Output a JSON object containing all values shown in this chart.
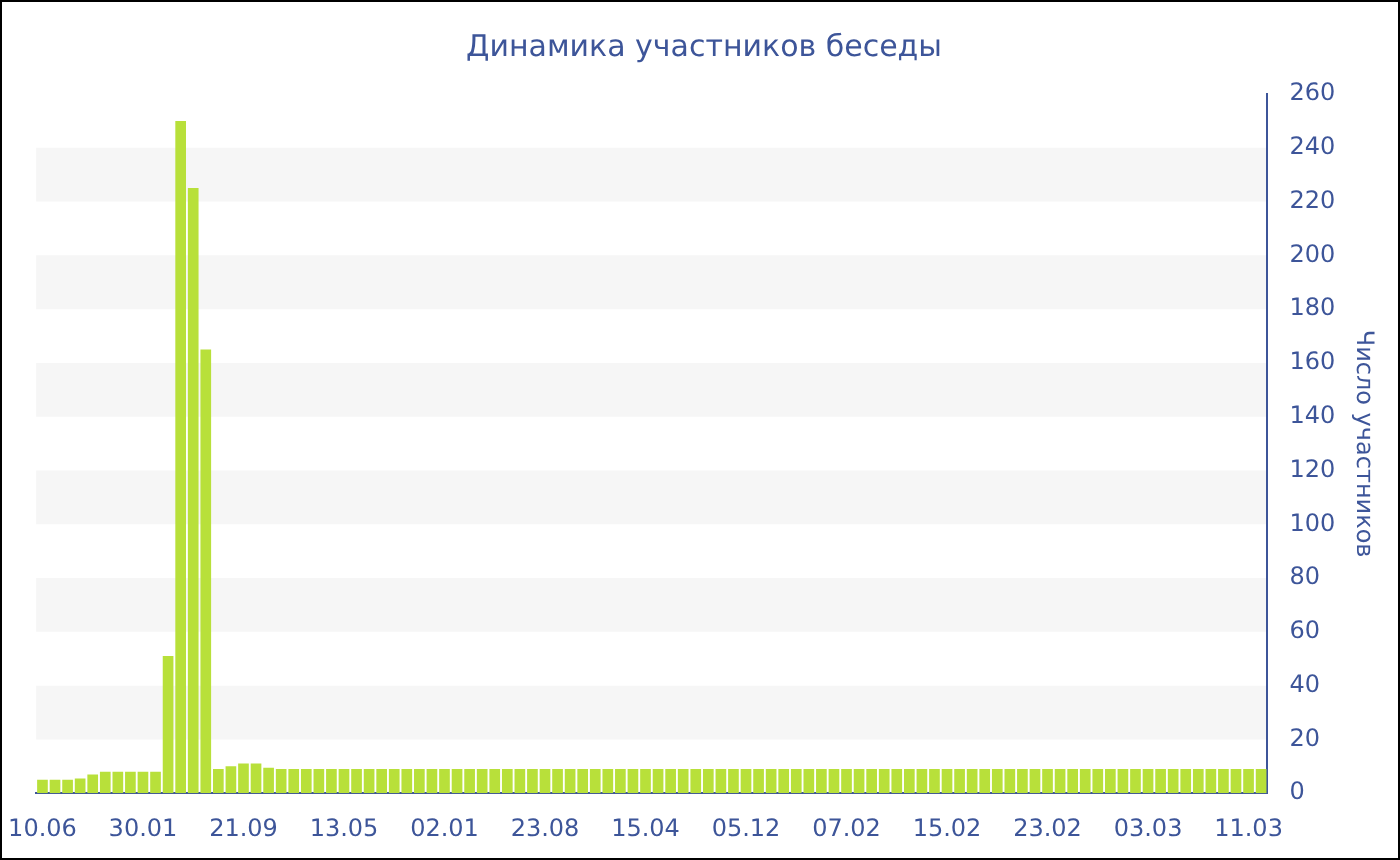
{
  "chart_data": {
    "type": "bar",
    "title": "Динамика участников беседы",
    "ylabel": "Число участников",
    "categories": [
      "10.06",
      null,
      null,
      null,
      null,
      null,
      null,
      null,
      "30.01",
      null,
      null,
      null,
      null,
      null,
      null,
      null,
      "21.09",
      null,
      null,
      null,
      null,
      null,
      null,
      null,
      "13.05",
      null,
      null,
      null,
      null,
      null,
      null,
      null,
      "02.01",
      null,
      null,
      null,
      null,
      null,
      null,
      null,
      "23.08",
      null,
      null,
      null,
      null,
      null,
      null,
      null,
      "15.04",
      null,
      null,
      null,
      null,
      null,
      null,
      null,
      "05.12",
      null,
      null,
      null,
      null,
      null,
      null,
      null,
      "07.02",
      null,
      null,
      null,
      null,
      null,
      null,
      null,
      "15.02",
      null,
      null,
      null,
      null,
      null,
      null,
      null,
      "23.02",
      null,
      null,
      null,
      null,
      null,
      null,
      null,
      "03.03",
      null,
      null,
      null,
      null,
      null,
      null,
      null,
      "11.03",
      null
    ],
    "values": [
      5,
      5,
      5,
      5.5,
      7,
      8,
      8,
      8,
      8,
      8,
      51,
      250,
      225,
      165,
      9,
      10,
      11,
      11,
      9.5,
      9,
      9,
      9,
      9,
      9,
      9,
      9,
      9,
      9,
      9,
      9,
      9,
      9,
      9,
      9,
      9,
      9,
      9,
      9,
      9,
      9,
      9,
      9,
      9,
      9,
      9,
      9,
      9,
      9,
      9,
      9,
      9,
      9,
      9,
      9,
      9,
      9,
      9,
      9,
      9,
      9,
      9,
      9,
      9,
      9,
      9,
      9,
      9,
      9,
      9,
      9,
      9,
      9,
      9,
      9,
      9,
      9,
      9,
      9,
      9,
      9,
      9,
      9,
      9,
      9,
      9,
      9,
      9,
      9,
      9,
      9,
      9,
      9,
      9,
      9,
      9,
      9,
      9,
      9
    ],
    "color": "#b8e03a",
    "ylim": [
      0,
      260
    ],
    "yticks": [
      0,
      20,
      40,
      60,
      80,
      100,
      120,
      140,
      160,
      180,
      200,
      220,
      240,
      260
    ],
    "bands": [
      {
        "axis": "y",
        "from": 20,
        "to": 40,
        "color": "#f6f6f6"
      },
      {
        "axis": "y",
        "from": 60,
        "to": 80,
        "color": "#f6f6f6"
      },
      {
        "axis": "y",
        "from": 100,
        "to": 120,
        "color": "#f6f6f6"
      },
      {
        "axis": "y",
        "from": 140,
        "to": 160,
        "color": "#f6f6f6"
      },
      {
        "axis": "y",
        "from": 180,
        "to": 200,
        "color": "#f6f6f6"
      },
      {
        "axis": "y",
        "from": 220,
        "to": 240,
        "color": "#f6f6f6"
      }
    ]
  }
}
